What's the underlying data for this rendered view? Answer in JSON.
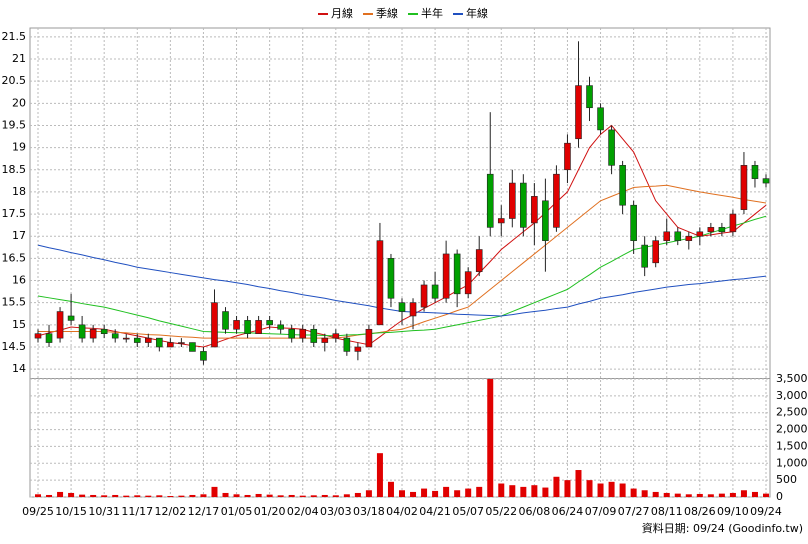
{
  "chart_data": {
    "type": "candlestick",
    "categories": [
      "09/25",
      null,
      null,
      "10/15",
      null,
      null,
      "10/31",
      null,
      null,
      "11/17",
      null,
      null,
      "12/02",
      null,
      null,
      "12/17",
      null,
      null,
      "01/05",
      null,
      null,
      "01/20",
      null,
      null,
      "02/04",
      null,
      null,
      "03/03",
      null,
      null,
      "03/18",
      null,
      null,
      "04/02",
      null,
      null,
      "04/21",
      null,
      null,
      "05/07",
      null,
      null,
      "05/22",
      null,
      null,
      "06/08",
      null,
      null,
      "06/24",
      null,
      null,
      "07/09",
      null,
      null,
      "07/27",
      null,
      null,
      "08/11",
      null,
      null,
      "08/26",
      null,
      null,
      "09/10",
      null,
      null,
      "09/24"
    ],
    "ohlc": [
      [
        14.7,
        14.9,
        14.6,
        14.8
      ],
      [
        14.8,
        15.0,
        14.5,
        14.6
      ],
      [
        14.7,
        15.4,
        14.6,
        15.3
      ],
      [
        15.2,
        15.7,
        15.0,
        15.1
      ],
      [
        15.0,
        15.2,
        14.6,
        14.7
      ],
      [
        14.7,
        15.0,
        14.6,
        14.9
      ],
      [
        14.9,
        15.0,
        14.7,
        14.8
      ],
      [
        14.8,
        14.9,
        14.6,
        14.7
      ],
      [
        14.7,
        14.8,
        14.6,
        14.7
      ],
      [
        14.7,
        14.8,
        14.5,
        14.6
      ],
      [
        14.6,
        14.8,
        14.5,
        14.7
      ],
      [
        14.7,
        14.7,
        14.4,
        14.5
      ],
      [
        14.5,
        14.7,
        14.5,
        14.6
      ],
      [
        14.6,
        14.7,
        14.5,
        14.6
      ],
      [
        14.6,
        14.6,
        14.4,
        14.4
      ],
      [
        14.4,
        14.5,
        14.1,
        14.2
      ],
      [
        14.5,
        15.8,
        14.5,
        15.5
      ],
      [
        15.3,
        15.4,
        14.8,
        14.9
      ],
      [
        14.9,
        15.2,
        14.8,
        15.1
      ],
      [
        15.1,
        15.2,
        14.7,
        14.8
      ],
      [
        14.8,
        15.2,
        14.8,
        15.1
      ],
      [
        15.1,
        15.2,
        14.9,
        15.0
      ],
      [
        15.0,
        15.1,
        14.8,
        14.9
      ],
      [
        14.9,
        15.0,
        14.6,
        14.7
      ],
      [
        14.7,
        15.0,
        14.6,
        14.9
      ],
      [
        14.9,
        15.0,
        14.5,
        14.6
      ],
      [
        14.6,
        14.8,
        14.4,
        14.7
      ],
      [
        14.7,
        14.9,
        14.6,
        14.8
      ],
      [
        14.7,
        14.8,
        14.3,
        14.4
      ],
      [
        14.4,
        14.6,
        14.2,
        14.5
      ],
      [
        14.5,
        15.0,
        14.5,
        14.9
      ],
      [
        15.0,
        17.3,
        15.0,
        16.9
      ],
      [
        16.5,
        16.6,
        15.4,
        15.6
      ],
      [
        15.5,
        15.6,
        15.0,
        15.3
      ],
      [
        15.2,
        15.6,
        14.9,
        15.5
      ],
      [
        15.4,
        16.0,
        15.3,
        15.9
      ],
      [
        15.9,
        16.2,
        15.5,
        15.6
      ],
      [
        15.6,
        16.9,
        15.5,
        16.6
      ],
      [
        16.6,
        16.7,
        15.4,
        15.7
      ],
      [
        15.7,
        16.3,
        15.6,
        16.2
      ],
      [
        16.2,
        17.0,
        16.1,
        16.7
      ],
      [
        18.4,
        19.8,
        17.0,
        17.2
      ],
      [
        17.3,
        17.7,
        17.0,
        17.4
      ],
      [
        17.4,
        18.5,
        17.2,
        18.2
      ],
      [
        18.2,
        18.4,
        17.0,
        17.2
      ],
      [
        17.3,
        18.2,
        16.8,
        17.9
      ],
      [
        17.8,
        18.3,
        16.2,
        16.9
      ],
      [
        17.2,
        18.6,
        17.1,
        18.4
      ],
      [
        18.5,
        19.3,
        18.2,
        19.1
      ],
      [
        19.2,
        21.4,
        19.0,
        20.4
      ],
      [
        20.4,
        20.6,
        19.6,
        19.9
      ],
      [
        19.9,
        20.0,
        19.3,
        19.4
      ],
      [
        19.4,
        19.5,
        18.4,
        18.6
      ],
      [
        18.6,
        18.7,
        17.5,
        17.7
      ],
      [
        17.7,
        17.8,
        16.6,
        16.9
      ],
      [
        16.8,
        17.0,
        16.1,
        16.3
      ],
      [
        16.4,
        17.0,
        16.3,
        16.9
      ],
      [
        16.9,
        17.4,
        16.8,
        17.1
      ],
      [
        17.1,
        17.2,
        16.8,
        16.9
      ],
      [
        16.9,
        17.1,
        16.7,
        17.0
      ],
      [
        17.0,
        17.2,
        16.8,
        17.1
      ],
      [
        17.1,
        17.3,
        17.0,
        17.2
      ],
      [
        17.2,
        17.3,
        17.0,
        17.1
      ],
      [
        17.1,
        17.6,
        17.0,
        17.5
      ],
      [
        17.6,
        18.9,
        17.5,
        18.6
      ],
      [
        18.6,
        18.7,
        18.1,
        18.3
      ],
      [
        18.3,
        18.4,
        18.1,
        18.2
      ]
    ],
    "up_color": "#e00000",
    "down_color": "#00a000",
    "series": [
      {
        "name": "月線",
        "color": "#d01010",
        "values": [
          14.75,
          14.82,
          14.88,
          14.95,
          14.93,
          14.92,
          14.9,
          14.85,
          14.8,
          14.75,
          14.7,
          14.65,
          14.6,
          14.57,
          14.53,
          14.5,
          14.58,
          14.67,
          14.75,
          14.82,
          14.88,
          14.95,
          14.93,
          14.92,
          14.9,
          14.83,
          14.77,
          14.7,
          14.65,
          14.6,
          14.55,
          14.73,
          14.92,
          15.1,
          15.23,
          15.37,
          15.5,
          15.63,
          15.77,
          15.9,
          16.17,
          16.43,
          16.7,
          16.9,
          17.1,
          17.3,
          17.53,
          17.77,
          18.0,
          18.5,
          19.0,
          19.3,
          19.5,
          19.2,
          18.9,
          18.35,
          17.8,
          17.5,
          17.2,
          17.1,
          17.0,
          17.03,
          17.07,
          17.1,
          17.3,
          17.5,
          17.7
        ]
      },
      {
        "name": "季線",
        "color": "#e07020",
        "values": [
          14.85,
          14.85,
          14.85,
          14.85,
          14.85,
          14.85,
          14.85,
          14.83,
          14.82,
          14.8,
          14.78,
          14.77,
          14.75,
          14.73,
          14.72,
          14.7,
          14.7,
          14.7,
          14.7,
          14.7,
          14.7,
          14.7,
          14.7,
          14.7,
          14.7,
          14.7,
          14.7,
          14.7,
          14.73,
          14.77,
          14.8,
          14.83,
          14.87,
          14.9,
          14.98,
          15.07,
          15.15,
          15.23,
          15.32,
          15.4,
          15.6,
          15.8,
          16.0,
          16.2,
          16.4,
          16.6,
          16.8,
          17.0,
          17.2,
          17.4,
          17.6,
          17.8,
          17.9,
          18.0,
          18.1,
          18.12,
          18.13,
          18.15,
          18.1,
          18.05,
          18.0,
          17.96,
          17.92,
          17.88,
          17.83,
          17.79,
          17.75
        ]
      },
      {
        "name": "半年",
        "color": "#20c020",
        "values": [
          15.65,
          15.61,
          15.57,
          15.53,
          15.48,
          15.44,
          15.4,
          15.34,
          15.28,
          15.22,
          15.16,
          15.09,
          15.03,
          14.97,
          14.91,
          14.85,
          14.84,
          14.83,
          14.82,
          14.82,
          14.81,
          14.8,
          14.79,
          14.78,
          14.77,
          14.77,
          14.76,
          14.75,
          14.77,
          14.78,
          14.8,
          14.82,
          14.83,
          14.85,
          14.87,
          14.88,
          14.9,
          14.95,
          15.0,
          15.05,
          15.1,
          15.15,
          15.2,
          15.3,
          15.4,
          15.5,
          15.6,
          15.7,
          15.8,
          15.97,
          16.13,
          16.3,
          16.43,
          16.57,
          16.7,
          16.75,
          16.8,
          16.85,
          16.9,
          16.95,
          17.0,
          17.08,
          17.15,
          17.23,
          17.3,
          17.38,
          17.45
        ]
      },
      {
        "name": "年線",
        "color": "#2050c0",
        "values": [
          16.8,
          16.74,
          16.69,
          16.63,
          16.58,
          16.52,
          16.47,
          16.41,
          16.36,
          16.3,
          16.26,
          16.22,
          16.18,
          16.14,
          16.1,
          16.06,
          16.02,
          15.99,
          15.95,
          15.91,
          15.86,
          15.82,
          15.77,
          15.73,
          15.68,
          15.64,
          15.6,
          15.55,
          15.51,
          15.47,
          15.43,
          15.38,
          15.34,
          15.3,
          15.29,
          15.28,
          15.27,
          15.26,
          15.24,
          15.23,
          15.22,
          15.21,
          15.2,
          15.23,
          15.27,
          15.3,
          15.33,
          15.37,
          15.4,
          15.47,
          15.53,
          15.6,
          15.64,
          15.68,
          15.73,
          15.77,
          15.81,
          15.85,
          15.88,
          15.91,
          15.93,
          15.96,
          15.99,
          16.02,
          16.04,
          16.07,
          16.1
        ]
      }
    ],
    "volume": {
      "color": "#e00000",
      "values": [
        80,
        60,
        150,
        120,
        70,
        60,
        50,
        60,
        40,
        50,
        40,
        50,
        30,
        40,
        60,
        80,
        300,
        120,
        80,
        60,
        90,
        70,
        50,
        60,
        40,
        50,
        60,
        50,
        80,
        120,
        200,
        1300,
        450,
        200,
        150,
        250,
        180,
        300,
        200,
        250,
        300,
        3500,
        400,
        350,
        300,
        350,
        280,
        600,
        500,
        800,
        500,
        400,
        450,
        400,
        250,
        200,
        150,
        120,
        100,
        80,
        90,
        80,
        100,
        120,
        200,
        150,
        100
      ]
    },
    "ylim": [
      13.8,
      21.7
    ],
    "yticks": [
      14,
      14.5,
      15,
      15.5,
      16,
      16.5,
      17,
      17.5,
      18,
      18.5,
      19,
      19.5,
      20,
      20.5,
      21,
      21.5
    ],
    "y2lim": [
      0,
      3500
    ],
    "y2ticks": [
      0,
      500,
      {
        "value": 1000,
        "label": "1,000"
      },
      {
        "value": 1500,
        "label": "1,500"
      },
      {
        "value": 2000,
        "label": "2,000"
      },
      {
        "value": 2500,
        "label": "2,500"
      },
      {
        "value": 3000,
        "label": "3,000"
      },
      {
        "value": 3500,
        "label": "3,500"
      }
    ],
    "grid": true,
    "source": "資料日期: 09/24 (Goodinfo.tw)"
  }
}
